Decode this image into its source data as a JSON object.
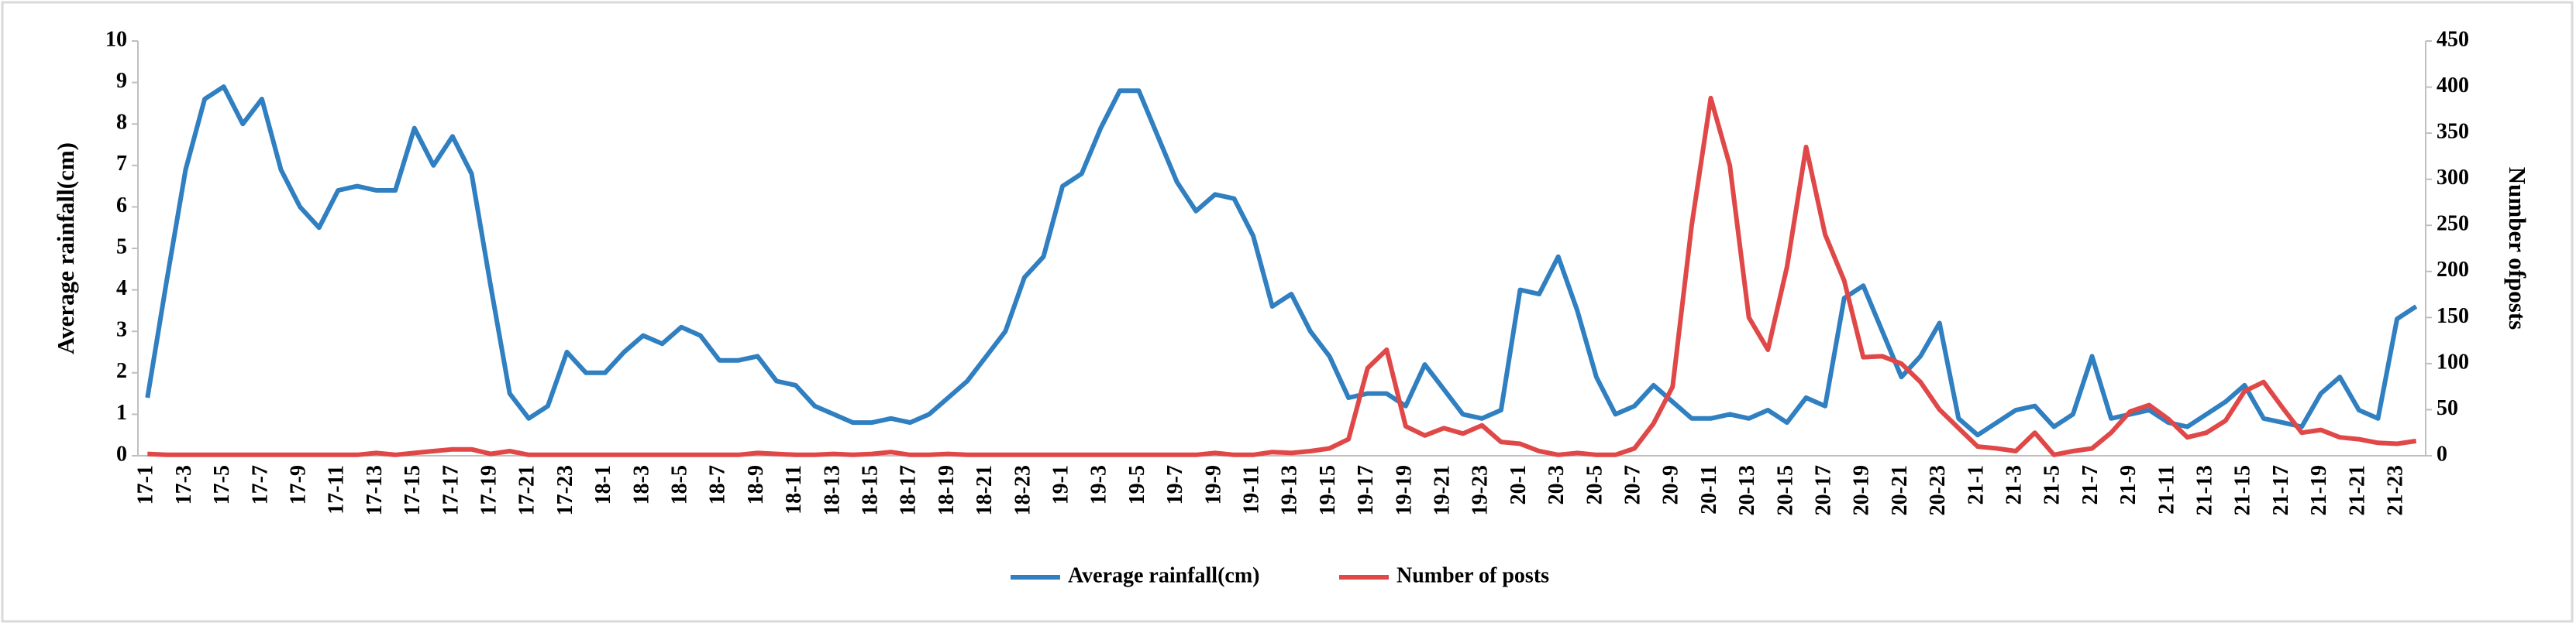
{
  "chart_data": {
    "type": "line",
    "categories": [
      "17-1",
      null,
      "17-3",
      null,
      "17-5",
      null,
      "17-7",
      null,
      "17-9",
      null,
      "17-11",
      null,
      "17-13",
      null,
      "17-15",
      null,
      "17-17",
      null,
      "17-19",
      null,
      "17-21",
      null,
      "17-23",
      null,
      "18-1",
      null,
      "18-3",
      null,
      "18-5",
      null,
      "18-7",
      null,
      "18-9",
      null,
      "18-11",
      null,
      "18-13",
      null,
      "18-15",
      null,
      "18-17",
      null,
      "18-19",
      null,
      "18-21",
      null,
      "18-23",
      null,
      "19-1",
      null,
      "19-3",
      null,
      "19-5",
      null,
      "19-7",
      null,
      "19-9",
      null,
      "19-11",
      null,
      "19-13",
      null,
      "19-15",
      null,
      "19-17",
      null,
      "19-19",
      null,
      "19-21",
      null,
      "19-23",
      null,
      "20-1",
      null,
      "20-3",
      null,
      "20-5",
      null,
      "20-7",
      null,
      "20-9",
      null,
      "20-11",
      null,
      "20-13",
      null,
      "20-15",
      null,
      "20-17",
      null,
      "20-19",
      null,
      "20-21",
      null,
      "20-23",
      null,
      "21-1",
      null,
      "21-3",
      null,
      "21-5",
      null,
      "21-7",
      null,
      "21-9",
      null,
      "21-11",
      null,
      "21-13",
      null,
      "21-15",
      null,
      "21-17",
      null,
      "21-19",
      null,
      "21-21",
      null,
      "21-23",
      null
    ],
    "series": [
      {
        "name": "Average rainfall(cm)",
        "color": "#2f7fc1",
        "axis": "y",
        "values": [
          1.4,
          4.2,
          6.9,
          8.6,
          8.9,
          8.0,
          8.6,
          6.9,
          6.0,
          5.5,
          6.4,
          6.5,
          6.4,
          6.4,
          7.9,
          7.0,
          7.7,
          6.8,
          4.1,
          1.5,
          0.9,
          1.2,
          2.5,
          2.0,
          2.0,
          2.5,
          2.9,
          2.7,
          3.1,
          2.9,
          2.3,
          2.3,
          2.4,
          1.8,
          1.7,
          1.2,
          1.0,
          0.8,
          0.8,
          0.9,
          0.8,
          1.0,
          1.4,
          1.8,
          2.4,
          3.0,
          4.3,
          4.8,
          6.5,
          6.8,
          7.9,
          8.8,
          8.8,
          7.7,
          6.6,
          5.9,
          6.3,
          6.2,
          5.3,
          3.6,
          3.9,
          3.0,
          2.4,
          1.4,
          1.5,
          1.5,
          1.2,
          2.2,
          1.6,
          1.0,
          0.9,
          1.1,
          4.0,
          3.9,
          4.8,
          3.5,
          1.9,
          1.0,
          1.2,
          1.7,
          1.3,
          0.9,
          0.9,
          1.0,
          0.9,
          1.1,
          0.8,
          1.4,
          1.2,
          3.8,
          4.1,
          3.0,
          1.9,
          2.4,
          3.2,
          0.9,
          0.5,
          0.8,
          1.1,
          1.2,
          0.7,
          1.0,
          2.4,
          0.9,
          1.0,
          1.1,
          0.8,
          0.7,
          1.0,
          1.3,
          1.7,
          0.9,
          0.8,
          0.7,
          1.5,
          1.9,
          1.1,
          0.9,
          3.3,
          3.6
        ]
      },
      {
        "name": "Number of posts",
        "color": "#e04848",
        "axis": "y2",
        "values": [
          2,
          1,
          1,
          1,
          1,
          1,
          1,
          1,
          1,
          1,
          1,
          1,
          3,
          1,
          3,
          5,
          7,
          7,
          2,
          5,
          1,
          1,
          1,
          1,
          1,
          1,
          1,
          1,
          1,
          1,
          1,
          1,
          3,
          2,
          1,
          1,
          2,
          1,
          2,
          4,
          1,
          1,
          2,
          1,
          1,
          1,
          1,
          1,
          1,
          1,
          1,
          1,
          1,
          1,
          1,
          1,
          3,
          1,
          1,
          4,
          3,
          5,
          8,
          18,
          95,
          115,
          32,
          22,
          30,
          24,
          33,
          15,
          13,
          5,
          1,
          3,
          1,
          1,
          8,
          35,
          75,
          250,
          388,
          315,
          150,
          115,
          205,
          335,
          240,
          190,
          107,
          108,
          100,
          80,
          50,
          30,
          10,
          8,
          5,
          25,
          1,
          5,
          8,
          25,
          48,
          55,
          40,
          20,
          25,
          38,
          70,
          80,
          52,
          25,
          28,
          20,
          18,
          14,
          13,
          16
        ]
      }
    ],
    "ylabel": "Average rainfall(cm)",
    "y2label": "Number ofposts",
    "ylim": [
      0,
      10
    ],
    "yticks": [
      0,
      1,
      2,
      3,
      4,
      5,
      6,
      7,
      8,
      9,
      10
    ],
    "y2lim": [
      0,
      450
    ],
    "y2ticks": [
      0,
      50,
      100,
      150,
      200,
      250,
      300,
      350,
      400,
      450
    ],
    "legend": "bottom"
  }
}
